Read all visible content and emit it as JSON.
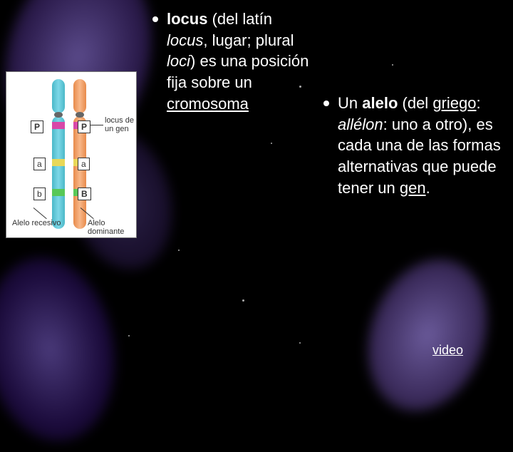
{
  "background": {
    "base_color": "#000000",
    "blob_colors": [
      "#5a4a8a",
      "#4a3a7a",
      "#6a5a9a"
    ],
    "dot_color": "#aaaaaa"
  },
  "diagram": {
    "background": "#ffffff",
    "chromosome_colors": {
      "left": "#4ab8c8",
      "right": "#e88a4a"
    },
    "band_colors": {
      "P": "#d848a8",
      "a": "#e8d858",
      "b": "#58c858"
    },
    "labels": {
      "P_left": "P",
      "P_right": "P",
      "a_left": "a",
      "a_right": "a",
      "b_left": "b",
      "b_right": "B",
      "locus": "locus de un gen",
      "recessive": "Alelo recesivo",
      "dominant": "Alelo dominante"
    },
    "label_fontsize": 11
  },
  "column1": {
    "parts": [
      {
        "text": "locus",
        "bold": true
      },
      {
        "text": " (del latín "
      },
      {
        "text": "locus",
        "italic": true
      },
      {
        "text": ", lugar; plural "
      },
      {
        "text": "loci",
        "italic": true
      },
      {
        "text": ") es una posición fija sobre un "
      },
      {
        "text": "cromosoma",
        "underline": true
      }
    ],
    "fontsize": 22,
    "color": "#ffffff"
  },
  "column2": {
    "parts": [
      {
        "text": "Un "
      },
      {
        "text": "alelo",
        "bold": true
      },
      {
        "text": " (del "
      },
      {
        "text": "griego",
        "underline": true
      },
      {
        "text": ": "
      },
      {
        "text": "allélon",
        "italic": true
      },
      {
        "text": ": uno a otro), es cada una de las formas alternativas que puede tener un "
      },
      {
        "text": "gen",
        "underline": true
      },
      {
        "text": "."
      }
    ],
    "fontsize": 22,
    "color": "#ffffff"
  },
  "video_link": {
    "text": "video",
    "fontsize": 18,
    "color": "#ffffff"
  }
}
